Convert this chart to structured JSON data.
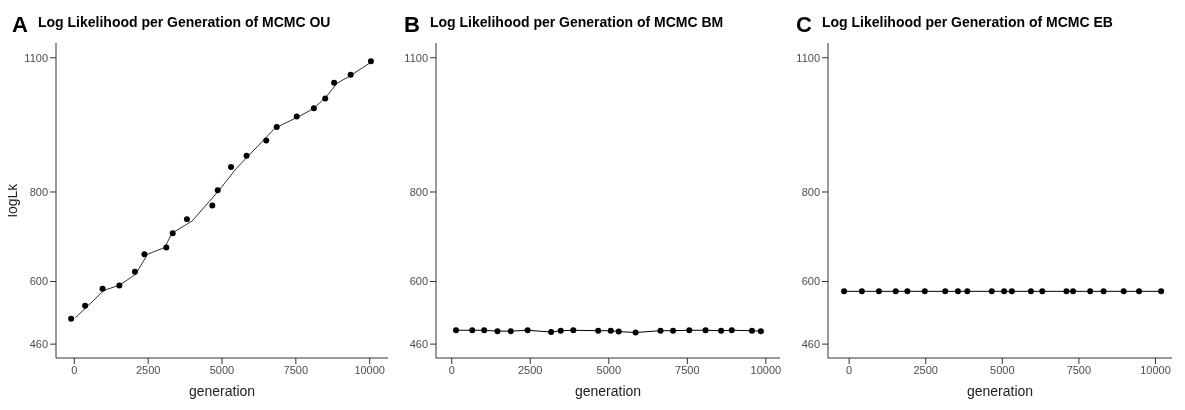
{
  "chart_data": [
    {
      "type": "scatter",
      "title": "Log Likelihood per Generation of MCMC OU",
      "annotations": [
        "A"
      ],
      "xlabel": "generation",
      "ylabel": "logLk",
      "xlim": [
        -620,
        10620
      ],
      "xticks": [
        0,
        2500,
        5000,
        7500,
        10000
      ],
      "ylim": [
        429,
        1133
      ],
      "yticks": [
        460,
        600,
        800,
        1100
      ],
      "grid": false,
      "series": [
        {
          "color": "#000000",
          "marker": "circle",
          "x": [
            -107,
            365,
            956,
            1525,
            2052,
            2374,
            3115,
            3330,
            3813,
            4672,
            4855,
            5306,
            5832,
            6498,
            6853,
            7530,
            8110,
            8496,
            8797,
            9356,
            10043
          ],
          "values": [
            517,
            546,
            584,
            591,
            622,
            661,
            676,
            708,
            739,
            770,
            804,
            856,
            881,
            915,
            945,
            969,
            987,
            1009,
            1044,
            1062,
            1092
          ]
        },
        {
          "type": "line",
          "color": "#333333",
          "marker": "none",
          "x": [
            32,
            376,
            999,
            1536,
            2073,
            2481,
            3061,
            3308,
            3985,
            4866,
            5489,
            6800,
            7552,
            8088,
            8518,
            8894,
            9270,
            10000
          ],
          "values": [
            519,
            540,
            580,
            592,
            616,
            661,
            676,
            708,
            735,
            801,
            853,
            943,
            967,
            986,
            1012,
            1043,
            1057,
            1088
          ]
        }
      ]
    },
    {
      "type": "line",
      "title": "Log Likelihood per Generation of MCMC BM",
      "annotations": [
        "B"
      ],
      "xlabel": "generation",
      "xlim": [
        -500,
        10450
      ],
      "xticks": [
        0,
        2500,
        5000,
        7500,
        10000
      ],
      "ylim": [
        429,
        1133
      ],
      "yticks": [
        460,
        600,
        800,
        1100
      ],
      "grid": false,
      "series": [
        {
          "color": "#000000",
          "marker": "circle",
          "x": [
            137,
            654,
            1034,
            1456,
            1878,
            2416,
            3165,
            3470,
            3871,
            4662,
            5063,
            5316,
            5854,
            6646,
            7046,
            7563,
            8080,
            8576,
            8914,
            9557,
            9842
          ],
          "values": [
            491,
            491,
            491,
            489,
            489,
            491,
            487,
            490,
            491,
            490,
            490,
            488,
            486,
            490,
            490,
            491,
            491,
            490,
            491,
            490,
            489
          ]
        }
      ]
    },
    {
      "type": "line",
      "title": "Log Likelihood per Generation of MCMC EB",
      "annotations": [
        "C"
      ],
      "xlabel": "generation",
      "xlim": [
        -690,
        10540
      ],
      "xticks": [
        0,
        2500,
        5000,
        7500,
        10000
      ],
      "ylim": [
        429,
        1133
      ],
      "yticks": [
        460,
        600,
        800,
        1100
      ],
      "grid": false,
      "series": [
        {
          "color": "#000000",
          "marker": "circle",
          "x": [
            -164,
            415,
            973,
            1519,
            1902,
            2470,
            3137,
            3552,
            3858,
            4656,
            5060,
            5311,
            5934,
            6306,
            7093,
            7311,
            7869,
            8306,
            8962,
            9464,
            10186
          ],
          "values": [
            578,
            578,
            578,
            578,
            578,
            578,
            578,
            578,
            578,
            578,
            578,
            578,
            578,
            578,
            578,
            578,
            578,
            578,
            578,
            578,
            578
          ]
        }
      ]
    }
  ]
}
